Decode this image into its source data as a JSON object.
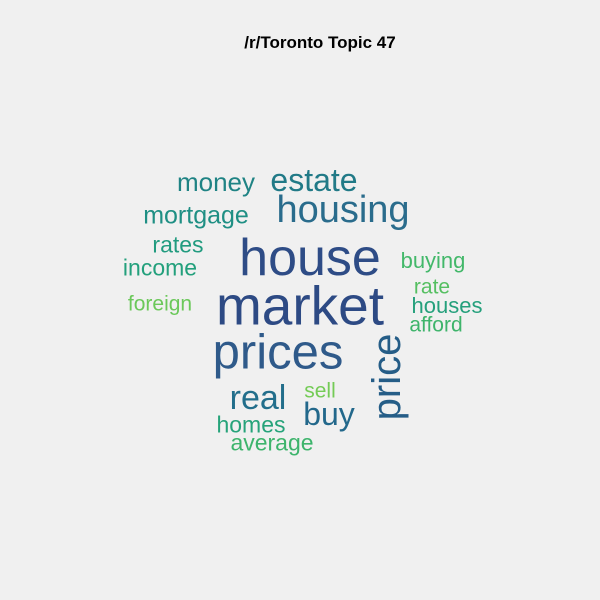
{
  "title": "/r/Toronto Topic 47",
  "words": [
    {
      "text": "market",
      "color": "#2d4a84"
    },
    {
      "text": "house",
      "color": "#2e4c86"
    },
    {
      "text": "prices",
      "color": "#2f5a8a"
    },
    {
      "text": "housing",
      "color": "#2a6c8c"
    },
    {
      "text": "price",
      "color": "#255d87"
    },
    {
      "text": "estate",
      "color": "#217a87"
    },
    {
      "text": "real",
      "color": "#226e8b"
    },
    {
      "text": "buy",
      "color": "#23688b"
    },
    {
      "text": "money",
      "color": "#1f8384"
    },
    {
      "text": "mortgage",
      "color": "#1f8f84"
    },
    {
      "text": "rates",
      "color": "#219b7f"
    },
    {
      "text": "income",
      "color": "#23a07c"
    },
    {
      "text": "buying",
      "color": "#43b86a"
    },
    {
      "text": "rate",
      "color": "#55bf61"
    },
    {
      "text": "houses",
      "color": "#25a07c"
    },
    {
      "text": "afford",
      "color": "#3eb46b"
    },
    {
      "text": "foreign",
      "color": "#6bc85a"
    },
    {
      "text": "sell",
      "color": "#74cb56"
    },
    {
      "text": "homes",
      "color": "#26a37a"
    },
    {
      "text": "average",
      "color": "#3db46c"
    }
  ]
}
